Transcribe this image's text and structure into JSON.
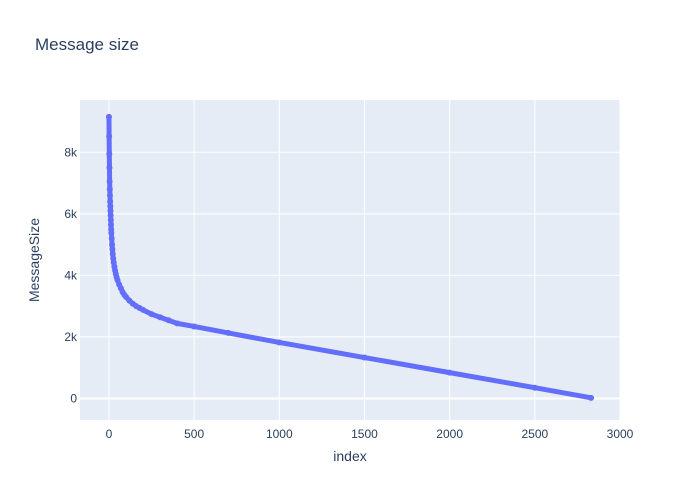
{
  "chart_data": {
    "type": "scatter",
    "mode": "lines+markers",
    "title": "Message size",
    "xlabel": "index",
    "ylabel": "MessageSize",
    "xlim": [
      -170,
      3000
    ],
    "ylim": [
      -700,
      9700
    ],
    "x_ticks": [
      0,
      500,
      1000,
      1500,
      2000,
      2500,
      3000
    ],
    "x_tick_labels": [
      "0",
      "500",
      "1000",
      "1500",
      "2000",
      "2500",
      "3000"
    ],
    "y_ticks": [
      0,
      2000,
      4000,
      6000,
      8000
    ],
    "y_tick_labels": [
      "0",
      "2k",
      "4k",
      "6k",
      "8k"
    ],
    "grid": true,
    "colors": {
      "series": "#636efa",
      "plot_bg": "#e5ecf6",
      "grid": "#ffffff"
    },
    "series": [
      {
        "x": [
          0,
          1,
          2,
          3,
          4,
          5,
          6,
          7,
          8,
          9,
          10,
          11,
          12,
          13,
          14,
          16,
          18,
          20,
          22,
          25,
          28,
          32,
          36,
          40,
          45,
          50,
          60,
          70,
          80,
          90,
          100,
          120,
          140,
          160,
          180,
          200,
          250,
          300,
          350,
          400,
          500,
          700,
          1000,
          1500,
          2000,
          2500,
          2830
        ],
        "y": [
          9150,
          8520,
          7950,
          7500,
          7050,
          6800,
          6600,
          6400,
          6250,
          6100,
          5950,
          5800,
          5650,
          5500,
          5380,
          5200,
          5000,
          4850,
          4700,
          4550,
          4420,
          4280,
          4160,
          4050,
          3940,
          3850,
          3700,
          3580,
          3460,
          3370,
          3300,
          3180,
          3080,
          3000,
          2940,
          2880,
          2740,
          2640,
          2540,
          2440,
          2340,
          2130,
          1820,
          1330,
          840,
          350,
          20
        ]
      }
    ]
  }
}
